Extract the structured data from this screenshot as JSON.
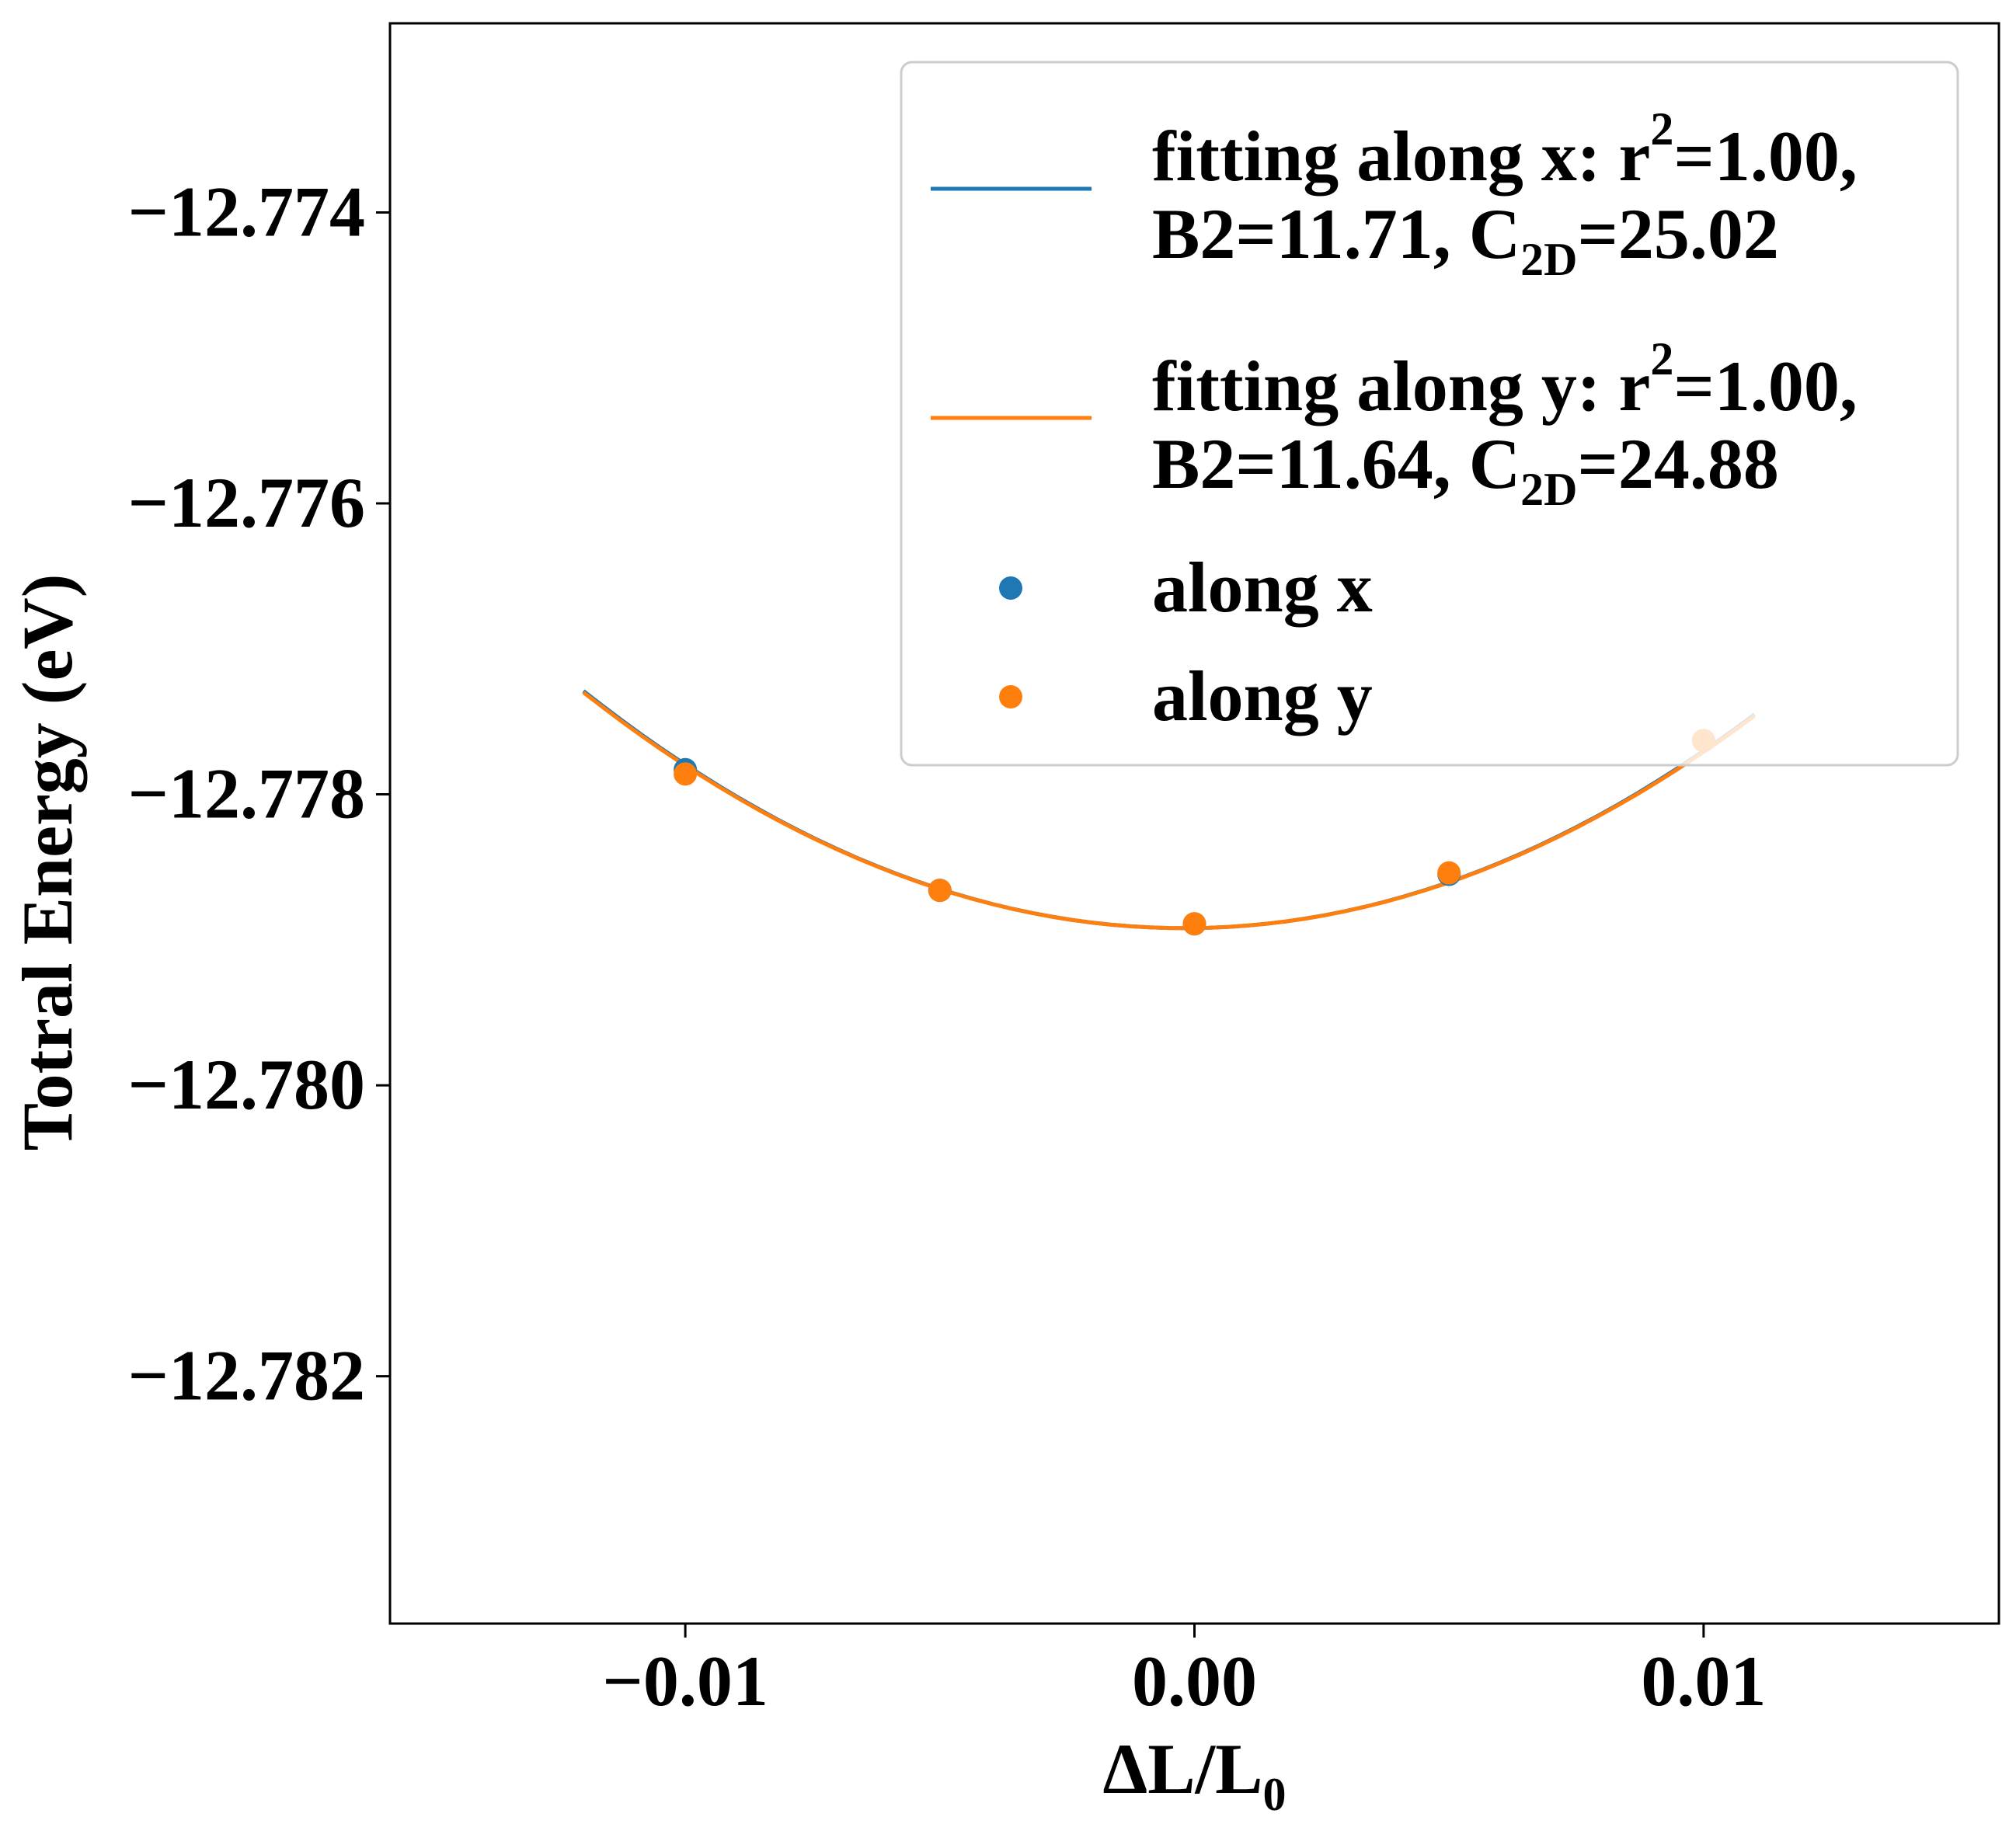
{
  "chart_data": {
    "type": "scatter",
    "xlabel": "ΔL/L",
    "xlabel_sub": "0",
    "ylabel": "Totral Energy (eV)",
    "xlim": [
      -0.0158,
      0.0158
    ],
    "ylim": [
      -12.7837,
      -12.7727
    ],
    "x_ticks": [
      -0.01,
      0.0,
      0.01
    ],
    "x_tick_labels": [
      "−0.01",
      "0.00",
      "0.01"
    ],
    "y_ticks": [
      -12.774,
      -12.776,
      -12.778,
      -12.78,
      -12.782
    ],
    "y_tick_labels": [
      "−12.774",
      "−12.776",
      "−12.778",
      "−12.780",
      "−12.782"
    ],
    "grid": false,
    "legend_position": "top-right",
    "series": [
      {
        "kind": "line",
        "color": "#1f77b4",
        "legend": {
          "line1": "fitting along x: r",
          "line1_sup": "2",
          "line1_end": "=1.00,",
          "line2": "B2=11.71, C",
          "line2_sub": "2D",
          "line2_end": "=25.02"
        },
        "fit": {
          "vertex_x": -0.0002,
          "vertex_y": -12.77892,
          "curvature": 11.71
        },
        "x_range": [
          -0.012,
          0.011
        ]
      },
      {
        "kind": "line",
        "color": "#ff7f0e",
        "legend": {
          "line1": "fitting along y: r",
          "line1_sup": "2",
          "line1_end": "=1.00,",
          "line2": "B2=11.64, C",
          "line2_sub": "2D",
          "line2_end": "=24.88"
        },
        "fit": {
          "vertex_x": -0.0002,
          "vertex_y": -12.77892,
          "curvature": 11.64
        },
        "x_range": [
          -0.012,
          0.011
        ]
      },
      {
        "kind": "scatter",
        "name": "along x",
        "color": "#1f77b4",
        "x": [
          -0.01,
          -0.005,
          0.0,
          0.005,
          0.01
        ],
        "y": [
          -12.77783,
          -12.77866,
          -12.77889,
          -12.77855,
          -12.77763
        ]
      },
      {
        "kind": "scatter",
        "name": "along y",
        "color": "#ff7f0e",
        "x": [
          -0.01,
          -0.005,
          0.0,
          0.005,
          0.01
        ],
        "y": [
          -12.77786,
          -12.77866,
          -12.77889,
          -12.77854,
          -12.77763
        ]
      }
    ]
  }
}
